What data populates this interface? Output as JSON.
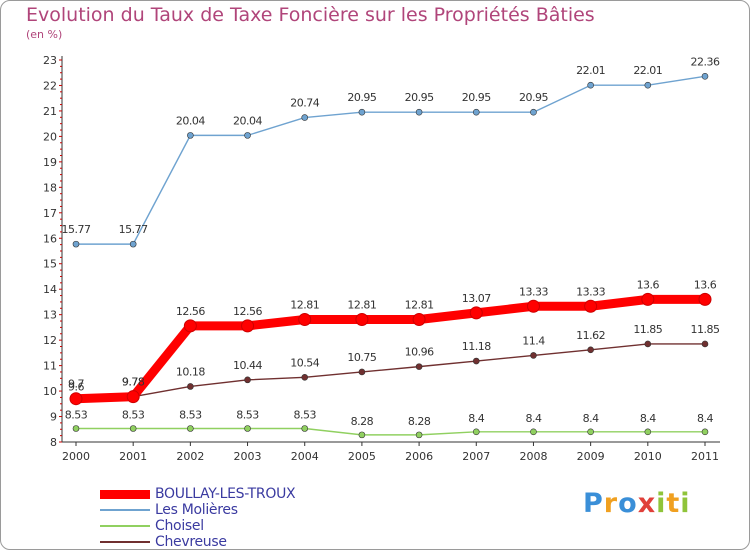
{
  "chart_data": {
    "type": "line",
    "title": "Evolution du Taux de Taxe Foncière sur les Propriétés Bâties",
    "unit": "(en %)",
    "categories": [
      "2000",
      "2001",
      "2002",
      "2003",
      "2004",
      "2005",
      "2006",
      "2007",
      "2008",
      "2009",
      "2010",
      "2011"
    ],
    "ylim": [
      8,
      23
    ],
    "yticks": [
      8,
      9,
      10,
      11,
      12,
      13,
      14,
      15,
      16,
      17,
      18,
      19,
      20,
      21,
      22,
      23
    ],
    "grid": false,
    "legend_position": "bottom-left",
    "series": [
      {
        "name": "BOULLAY-LES-TROUX",
        "color": "#ff0000",
        "values": [
          9.7,
          9.78,
          12.56,
          12.56,
          12.81,
          12.81,
          12.81,
          13.07,
          13.33,
          13.33,
          13.6,
          13.6
        ],
        "labels": [
          "9.7",
          "9.78",
          "12.56",
          "12.56",
          "12.81",
          "12.81",
          "12.81",
          "13.07",
          "13.33",
          "13.33",
          "13.6",
          "13.6"
        ]
      },
      {
        "name": "Les Molières",
        "color": "#6fa3d0",
        "values": [
          15.77,
          15.77,
          20.04,
          20.04,
          20.74,
          20.95,
          20.95,
          20.95,
          20.95,
          22.01,
          22.01,
          22.36
        ],
        "labels": [
          "15.77",
          "15.77",
          "20.04",
          "20.04",
          "20.74",
          "20.95",
          "20.95",
          "20.95",
          "20.95",
          "22.01",
          "22.01",
          "22.36"
        ]
      },
      {
        "name": "Choisel",
        "color": "#90d060",
        "values": [
          8.53,
          8.53,
          8.53,
          8.53,
          8.53,
          8.28,
          8.28,
          8.4,
          8.4,
          8.4,
          8.4,
          8.4
        ],
        "labels": [
          "8.53",
          "8.53",
          "8.53",
          "8.53",
          "8.53",
          "8.28",
          "8.28",
          "8.4",
          "8.4",
          "8.4",
          "8.4",
          "8.4"
        ]
      },
      {
        "name": "Chevreuse",
        "color": "#703030",
        "values": [
          9.6,
          9.78,
          10.18,
          10.44,
          10.54,
          10.75,
          10.96,
          11.18,
          11.4,
          11.62,
          11.85,
          11.85
        ],
        "labels": [
          "9.6",
          "9.78",
          "10.18",
          "10.44",
          "10.54",
          "10.75",
          "10.96",
          "11.18",
          "11.4",
          "11.62",
          "11.85",
          "11.85"
        ]
      }
    ]
  },
  "logo": {
    "letters": [
      "P",
      "r",
      "o",
      "x",
      "i",
      "t",
      "i"
    ],
    "colors": [
      "#3a8fd8",
      "#f0a020",
      "#3a8fd8",
      "#e0403a",
      "#8fc43a",
      "#f0a020",
      "#8fc43a"
    ]
  }
}
